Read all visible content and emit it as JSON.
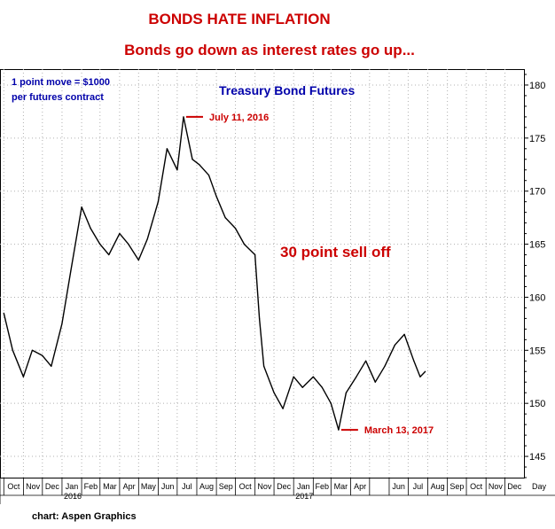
{
  "chart_data": {
    "type": "line",
    "title": "BONDS HATE INFLATION",
    "subtitle": "Bonds go down as interest rates go up...",
    "series": [
      {
        "name": "Treasury Bond Futures",
        "x": [
          "2015-10-01",
          "2015-10-15",
          "2015-11-01",
          "2015-11-15",
          "2015-12-01",
          "2015-12-15",
          "2016-01-01",
          "2016-01-15",
          "2016-02-01",
          "2016-02-15",
          "2016-03-01",
          "2016-03-15",
          "2016-04-01",
          "2016-04-15",
          "2016-05-01",
          "2016-05-15",
          "2016-06-01",
          "2016-06-15",
          "2016-07-01",
          "2016-07-11",
          "2016-07-25",
          "2016-08-05",
          "2016-08-20",
          "2016-09-01",
          "2016-09-15",
          "2016-10-01",
          "2016-10-15",
          "2016-11-01",
          "2016-11-08",
          "2016-11-15",
          "2016-12-01",
          "2016-12-15",
          "2017-01-01",
          "2017-01-15",
          "2017-02-01",
          "2017-02-15",
          "2017-03-01",
          "2017-03-13",
          "2017-03-25",
          "2017-04-10",
          "2017-04-25",
          "2017-05-10",
          "2017-05-25",
          "2017-06-10",
          "2017-06-25",
          "2017-07-10",
          "2017-07-20",
          "2017-07-28"
        ],
        "values": [
          158.5,
          155.0,
          152.5,
          155.0,
          154.5,
          153.5,
          157.5,
          162.5,
          168.5,
          166.5,
          165.0,
          164.0,
          166.0,
          165.0,
          163.5,
          165.5,
          169.0,
          174.0,
          172.0,
          177.0,
          173.0,
          172.5,
          171.5,
          169.5,
          167.5,
          166.5,
          165.0,
          164.0,
          158.0,
          153.5,
          151.0,
          149.5,
          152.5,
          151.5,
          152.5,
          151.5,
          150.0,
          147.5,
          151.0,
          152.5,
          154.0,
          152.0,
          153.5,
          155.5,
          156.5,
          154.0,
          152.5,
          153.0
        ]
      }
    ],
    "xlabel": "Day",
    "ylabel": "",
    "ylim": [
      143,
      181.5
    ],
    "yticks": [
      145,
      150,
      155,
      160,
      165,
      170,
      175,
      180
    ],
    "xlim": [
      "2015-09-25",
      "2017-12-31"
    ],
    "month_ticks": [
      "2015-10-01",
      "2015-11-01",
      "2015-12-01",
      "2016-01-01",
      "2016-02-01",
      "2016-03-01",
      "2016-04-01",
      "2016-05-01",
      "2016-06-01",
      "2016-07-01",
      "2016-08-01",
      "2016-09-01",
      "2016-10-01",
      "2016-11-01",
      "2016-12-01",
      "2017-01-01",
      "2017-02-01",
      "2017-03-01",
      "2017-04-01",
      "2017-05-01",
      "2017-06-01",
      "2017-07-01",
      "2017-08-01",
      "2017-09-01",
      "2017-10-01",
      "2017-11-01",
      "2017-12-01"
    ],
    "month_labels": [
      "Oct",
      "Nov",
      "Dec",
      "Jan",
      "Feb",
      "Mar",
      "Apr",
      "May",
      "Jun",
      "Jul",
      "Aug",
      "Sep",
      "Oct",
      "Nov",
      "Dec",
      "Jan",
      "Feb",
      "Mar",
      "Apr",
      "",
      "Jun",
      "Jul",
      "Aug",
      "Sep",
      "Oct",
      "Nov",
      "Dec"
    ],
    "year_labels": [
      {
        "date": "2016-01-01",
        "label": "2016"
      },
      {
        "date": "2017-01-01",
        "label": "2017"
      }
    ],
    "annotations": [
      {
        "text": "July 11, 2016",
        "date": "2016-07-11",
        "value": 177.0,
        "color": "#cc0000"
      },
      {
        "text": "March 13, 2017",
        "date": "2017-03-13",
        "value": 147.5,
        "color": "#cc0000"
      },
      {
        "text": "30 point sell off",
        "color": "#cc0000"
      },
      {
        "text": "Treasury Bond Futures",
        "color": "#0000aa"
      }
    ],
    "notes": [
      "1 point move = $1000",
      "per futures contract"
    ],
    "credit": "chart: Aspen Graphics",
    "grid": true,
    "colors": {
      "title": "#cc0000",
      "line": "#000000",
      "annotation": "#cc0000",
      "series_label": "#0000aa",
      "note": "#0000aa",
      "grid": "#b0b0b0"
    }
  }
}
